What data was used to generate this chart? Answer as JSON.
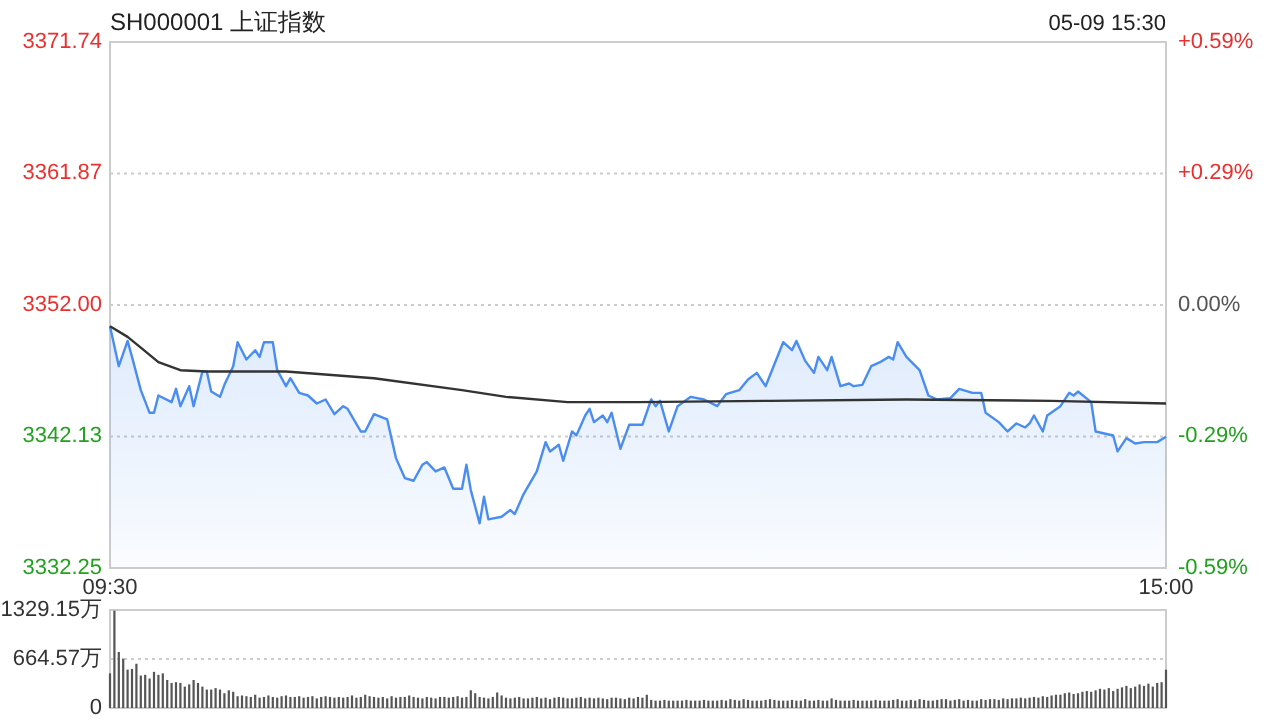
{
  "chart_data": [
    {
      "type": "area",
      "title": "SH000001 上证指数",
      "subtitle": "05-09 15:30",
      "grid": "y",
      "categories": [
        "09:30",
        null,
        null,
        null,
        null,
        null,
        null,
        null,
        null,
        null,
        null,
        null,
        null,
        null,
        null,
        null,
        null,
        null,
        null,
        null,
        null,
        null,
        null,
        null,
        null,
        null,
        null,
        null,
        null,
        null,
        null,
        null,
        null,
        null,
        null,
        null,
        null,
        null,
        null,
        null,
        null,
        null,
        null,
        null,
        null,
        null,
        null,
        null,
        null,
        null,
        null,
        null,
        null,
        null,
        null,
        null,
        null,
        null,
        null,
        null,
        null,
        null,
        null,
        null,
        null,
        null,
        null,
        null,
        null,
        null,
        null,
        null,
        null,
        null,
        null,
        null,
        null,
        null,
        null,
        null,
        null,
        null,
        null,
        null,
        null,
        null,
        null,
        null,
        null,
        null,
        null,
        null,
        null,
        null,
        null,
        null,
        null,
        null,
        null,
        null,
        null,
        null,
        null,
        null,
        null,
        null,
        null,
        null,
        null,
        null,
        null,
        null,
        null,
        null,
        null,
        null,
        null,
        null,
        null,
        null,
        null,
        null,
        null,
        null,
        null,
        null,
        null,
        null,
        null,
        null,
        null,
        null,
        null,
        null,
        null,
        null,
        null,
        null,
        null,
        null,
        null,
        null,
        null,
        null,
        null,
        null,
        null,
        null,
        null,
        null,
        null,
        null,
        null,
        null,
        null,
        null,
        null,
        null,
        null,
        null,
        null,
        null,
        null,
        null,
        null,
        null,
        null,
        null,
        null,
        null,
        null,
        null,
        null,
        null,
        null,
        null,
        null,
        null,
        null,
        null,
        null,
        null,
        null,
        null,
        null,
        null,
        null,
        null,
        null,
        null,
        null,
        null,
        null,
        null,
        null,
        null,
        null,
        null,
        null,
        null,
        null,
        null,
        null,
        null,
        null,
        null,
        null,
        null,
        null,
        null,
        null,
        null,
        null,
        null,
        null,
        null,
        null,
        null,
        null,
        null,
        null,
        null,
        null,
        null,
        null,
        null,
        null,
        null,
        null,
        null,
        null,
        null,
        null,
        null,
        null,
        null,
        null,
        null,
        null,
        null,
        "15:00"
      ],
      "ylim": [
        3332.25,
        3371.74
      ],
      "yticks": [
        3332.25,
        3342.13,
        {
          "value": 3352,
          "label": "3352.00"
        },
        3361.87,
        3371.74
      ],
      "y2lim": [
        -0.59,
        0.59
      ],
      "y2ticks": [
        {
          "value": -0.59,
          "label": "-0.59%"
        },
        {
          "value": -0.295,
          "label": "-0.29%"
        },
        {
          "value": 0,
          "label": "0.00%"
        },
        {
          "value": 0.295,
          "label": "+0.29%"
        },
        {
          "value": 0.59,
          "label": "+0.59%"
        }
      ],
      "series": [
        {
          "color": "#4a8df0",
          "values": [
            3350.4,
            null,
            3347.4,
            null,
            3349.3,
            3348.1,
            null,
            3345.6,
            null,
            3343.9,
            3343.9,
            3345.2,
            null,
            null,
            3344.7,
            3345.7,
            3344.4,
            null,
            3345.9,
            3344.4,
            null,
            3347.0,
            3347.0,
            3345.5,
            null,
            3345.1,
            3346.0,
            null,
            3347.4,
            3349.2,
            null,
            3347.9,
            null,
            3348.6,
            3348.1,
            3349.2,
            null,
            3349.2,
            3347.1,
            null,
            3345.9,
            3346.5,
            null,
            3345.4,
            null,
            3345.2,
            null,
            3344.6,
            null,
            3344.9,
            null,
            3343.8,
            null,
            3344.4,
            3344.2,
            null,
            null,
            3342.5,
            3342.5,
            null,
            3343.8,
            null,
            null,
            3343.4,
            null,
            3340.5,
            null,
            3339.0,
            null,
            3338.8,
            null,
            3340.0,
            3340.2,
            null,
            3339.5,
            null,
            3339.8,
            null,
            3338.2,
            null,
            3338.2,
            3340.0,
            3338.1,
            null,
            3335.6,
            3337.6,
            3335.9,
            null,
            null,
            3336.1,
            null,
            3336.6,
            3336.3,
            null,
            3337.8,
            null,
            null,
            3339.5,
            null,
            3341.7,
            3341.0,
            null,
            3341.5,
            3340.3,
            null,
            3342.5,
            3342.2,
            null,
            3343.7,
            3344.2,
            3343.2,
            null,
            3343.7,
            3343.2,
            3343.9,
            null,
            3341.2,
            null,
            3343.0,
            null,
            null,
            3343.0,
            null,
            3344.9,
            3344.4,
            3344.8,
            null,
            3342.5,
            null,
            3344.4,
            null,
            null,
            3345.1,
            null,
            null,
            3344.9,
            null,
            null,
            3344.4,
            null,
            3345.3,
            null,
            null,
            3345.6,
            null,
            3346.4,
            null,
            3346.9,
            null,
            3345.9,
            null,
            null,
            null,
            3349.2,
            null,
            3348.6,
            3349.3,
            null,
            3347.8,
            null,
            3346.9,
            3348.1,
            null,
            3347.1,
            3348.1,
            null,
            3345.9,
            null,
            3346.1,
            3345.9,
            null,
            3346.0,
            null,
            3347.4,
            null,
            3347.7,
            null,
            3348.1,
            3347.9,
            3349.2,
            null,
            3348.1,
            null,
            null,
            3347.1,
            null,
            3345.2,
            null,
            3344.9,
            null,
            null,
            3345.0,
            null,
            3345.7,
            null,
            null,
            3345.4,
            null,
            3345.4,
            3343.9,
            null,
            null,
            3343.2,
            null,
            3342.5,
            null,
            3343.1,
            null,
            3342.8,
            3343.1,
            3343.7,
            null,
            3342.5,
            3343.7,
            null,
            null,
            3344.4,
            null,
            3345.4,
            3345.2,
            3345.5,
            null,
            null,
            3344.7,
            3342.5,
            null,
            null,
            null,
            3342.2,
            3341.0,
            null,
            3342.0,
            null,
            3341.6,
            null,
            3341.7,
            null,
            null,
            3341.7,
            null,
            3342.1
          ]
        },
        {
          "type": "line",
          "color": "#333333",
          "values": [
            3350.4,
            null,
            null,
            null,
            3349.6,
            null,
            null,
            3348.8,
            null,
            null,
            null,
            3347.7,
            null,
            null,
            null,
            null,
            3347.1,
            null,
            null,
            null,
            null,
            null,
            3347.0,
            null,
            null,
            null,
            null,
            null,
            null,
            null,
            null,
            null,
            null,
            null,
            null,
            null,
            null,
            null,
            null,
            null,
            3347.0,
            null,
            null,
            null,
            null,
            null,
            null,
            null,
            null,
            null,
            null,
            null,
            null,
            null,
            null,
            null,
            null,
            null,
            null,
            null,
            3346.5,
            null,
            null,
            null,
            null,
            null,
            null,
            null,
            null,
            null,
            null,
            null,
            null,
            null,
            null,
            null,
            null,
            null,
            null,
            null,
            3345.6,
            null,
            null,
            null,
            null,
            null,
            null,
            null,
            null,
            null,
            3345.1,
            null,
            null,
            null,
            null,
            null,
            null,
            null,
            null,
            null,
            null,
            null,
            null,
            null,
            3344.7,
            null,
            null,
            null,
            null,
            null,
            null,
            null,
            null,
            null,
            null,
            null,
            null,
            null,
            null,
            null,
            3344.7,
            null,
            null,
            null,
            null,
            null,
            null,
            null,
            null,
            null,
            null,
            null,
            null,
            null,
            null,
            null,
            null,
            null,
            null,
            null,
            null,
            null,
            null,
            null,
            null,
            null,
            null,
            null,
            null,
            null,
            3344.8,
            null,
            null,
            null,
            null,
            null,
            null,
            null,
            null,
            null,
            null,
            null,
            null,
            null,
            null,
            null,
            null,
            null,
            null,
            null,
            null,
            null,
            null,
            null,
            null,
            null,
            null,
            null,
            null,
            null,
            null,
            3344.9,
            null,
            null,
            null,
            null,
            null,
            null,
            null,
            null,
            null,
            null,
            null,
            null,
            null,
            null,
            null,
            null,
            null,
            null,
            null,
            null,
            null,
            null,
            null,
            null,
            null,
            null,
            null,
            null,
            null,
            null,
            null,
            null,
            3344.8,
            null,
            null,
            null,
            null,
            null,
            null,
            null,
            null,
            null,
            null,
            null,
            null,
            null,
            null,
            null,
            null,
            null,
            null,
            null,
            null,
            null,
            null,
            null,
            null,
            null,
            3344.6
          ]
        }
      ]
    },
    {
      "type": "bar",
      "grid": "y",
      "tick_labels": "y",
      "color": "#555555",
      "ylim": [
        0,
        1329.15
      ],
      "yticks": [
        0,
        {
          "value": 664.57,
          "label": "664.57万"
        },
        {
          "value": 1329.15,
          "label": "1329.15万"
        }
      ],
      "categories": [
        null,
        null,
        null,
        null,
        null,
        null,
        null,
        null,
        null,
        null,
        null,
        null,
        null,
        null,
        null,
        null,
        null,
        null,
        null,
        null,
        null,
        null,
        null,
        null,
        null,
        null,
        null,
        null,
        null,
        null,
        null,
        null,
        null,
        null,
        null,
        null,
        null,
        null,
        null,
        null,
        null,
        null,
        null,
        null,
        null,
        null,
        null,
        null,
        null,
        null,
        null,
        null,
        null,
        null,
        null,
        null,
        null,
        null,
        null,
        null,
        null,
        null,
        null,
        null,
        null,
        null,
        null,
        null,
        null,
        null,
        null,
        null,
        null,
        null,
        null,
        null,
        null,
        null,
        null,
        null,
        null,
        null,
        null,
        null,
        null,
        null,
        null,
        null,
        null,
        null,
        null,
        null,
        null,
        null,
        null,
        null,
        null,
        null,
        null,
        null,
        null,
        null,
        null,
        null,
        null,
        null,
        null,
        null,
        null,
        null,
        null,
        null,
        null,
        null,
        null,
        null,
        null,
        null,
        null,
        null,
        null,
        null,
        null,
        null,
        null,
        null,
        null,
        null,
        null,
        null,
        null,
        null,
        null,
        null,
        null,
        null,
        null,
        null,
        null,
        null,
        null,
        null,
        null,
        null,
        null,
        null,
        null,
        null,
        null,
        null,
        null,
        null,
        null,
        null,
        null,
        null,
        null,
        null,
        null,
        null,
        null,
        null,
        null,
        null,
        null,
        null,
        null,
        null,
        null,
        null,
        null,
        null,
        null,
        null,
        null,
        null,
        null,
        null,
        null,
        null,
        null,
        null,
        null,
        null,
        null,
        null,
        null,
        null,
        null,
        null,
        null,
        null,
        null,
        null,
        null,
        null,
        null,
        null,
        null,
        null,
        null,
        null,
        null,
        null,
        null,
        null,
        null,
        null,
        null,
        null,
        null,
        null,
        null,
        null,
        null,
        null,
        null,
        null,
        null,
        null,
        null,
        null,
        null,
        null,
        null,
        null,
        null,
        null,
        null,
        null,
        null,
        null,
        null,
        null,
        null,
        null,
        null,
        null,
        null,
        null,
        null
      ],
      "values": [
        470,
        1320,
        760,
        670,
        520,
        530,
        600,
        440,
        450,
        400,
        490,
        450,
        470,
        380,
        340,
        350,
        340,
        290,
        320,
        380,
        340,
        290,
        250,
        250,
        270,
        250,
        200,
        240,
        220,
        160,
        170,
        160,
        150,
        180,
        140,
        150,
        170,
        150,
        140,
        160,
        170,
        150,
        150,
        160,
        140,
        150,
        160,
        130,
        150,
        160,
        150,
        140,
        150,
        140,
        150,
        170,
        140,
        150,
        180,
        160,
        150,
        140,
        150,
        130,
        160,
        140,
        150,
        150,
        170,
        150,
        140,
        130,
        150,
        140,
        130,
        150,
        150,
        140,
        150,
        160,
        140,
        150,
        240,
        200,
        150,
        140,
        130,
        150,
        210,
        170,
        140,
        130,
        140,
        150,
        130,
        130,
        140,
        150,
        130,
        140,
        120,
        140,
        150,
        140,
        130,
        130,
        140,
        150,
        130,
        140,
        130,
        140,
        130,
        120,
        140,
        140,
        130,
        120,
        140,
        130,
        150,
        140,
        180,
        110,
        100,
        100,
        110,
        100,
        100,
        100,
        100,
        110,
        100,
        100,
        100,
        110,
        100,
        100,
        100,
        110,
        100,
        120,
        110,
        100,
        120,
        110,
        100,
        100,
        100,
        110,
        120,
        110,
        100,
        100,
        100,
        110,
        100,
        100,
        120,
        100,
        100,
        110,
        100,
        100,
        130,
        110,
        100,
        100,
        100,
        110,
        100,
        100,
        100,
        100,
        110,
        100,
        100,
        100,
        110,
        120,
        100,
        100,
        110,
        100,
        120,
        110,
        100,
        100,
        110,
        120,
        120,
        100,
        110,
        120,
        100,
        110,
        100,
        100,
        120,
        110,
        120,
        120,
        110,
        130,
        120,
        130,
        130,
        140,
        130,
        140,
        150,
        140,
        160,
        150,
        170,
        180,
        180,
        200,
        210,
        190,
        200,
        220,
        230,
        220,
        240,
        260,
        250,
        270,
        230,
        260,
        280,
        300,
        270,
        290,
        320,
        300,
        330,
        290,
        340,
        350,
        520
      ]
    }
  ]
}
